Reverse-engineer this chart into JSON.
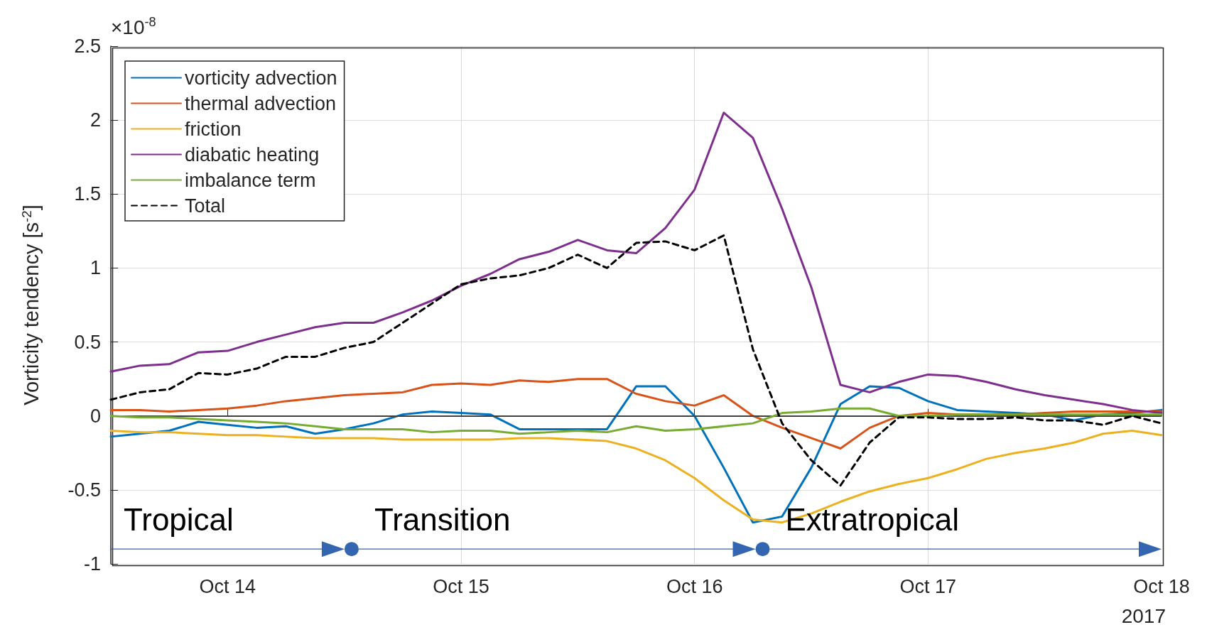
{
  "chart_data": {
    "type": "line",
    "ylabel": "Vorticity tendency [s$^{-2}$]",
    "annotations": [
      "×10$^{-8}$",
      "2017",
      "Tropical",
      {
        "text": "Transition",
        "x": "2017-10-14T12:45",
        "y": -0.9
      },
      {
        "text": "Extratropical",
        "x": "2017-10-16T07:00",
        "y": -0.9
      }
    ],
    "x": [
      "2017-10-13T12:00",
      "2017-10-13T15:00",
      "2017-10-13T18:00",
      "2017-10-13T21:00",
      "2017-10-14T00:00",
      "2017-10-14T03:00",
      "2017-10-14T06:00",
      "2017-10-14T09:00",
      "2017-10-14T12:00",
      "2017-10-14T15:00",
      "2017-10-14T18:00",
      "2017-10-14T21:00",
      "2017-10-15T00:00",
      "2017-10-15T03:00",
      "2017-10-15T06:00",
      "2017-10-15T09:00",
      "2017-10-15T12:00",
      "2017-10-15T15:00",
      "2017-10-15T18:00",
      "2017-10-15T21:00",
      "2017-10-16T00:00",
      "2017-10-16T03:00",
      "2017-10-16T06:00",
      "2017-10-16T09:00",
      "2017-10-16T12:00",
      "2017-10-16T15:00",
      "2017-10-16T18:00",
      "2017-10-16T21:00",
      "2017-10-17T00:00",
      "2017-10-17T03:00",
      "2017-10-17T06:00",
      "2017-10-17T09:00",
      "2017-10-17T12:00",
      "2017-10-17T15:00",
      "2017-10-17T18:00",
      "2017-10-17T21:00",
      "2017-10-18T00:00"
    ],
    "series": [
      {
        "name": "vorticity advection",
        "color": "#0072bd",
        "values": [
          -0.14,
          -0.12,
          -0.1,
          -0.04,
          -0.06,
          -0.08,
          -0.07,
          -0.12,
          -0.09,
          -0.05,
          0.01,
          0.03,
          0.02,
          0.01,
          -0.09,
          -0.09,
          -0.09,
          -0.09,
          0.2,
          0.2,
          0.0,
          -0.35,
          -0.72,
          -0.68,
          -0.35,
          0.08,
          0.2,
          0.19,
          0.1,
          0.04,
          0.03,
          0.02,
          0.01,
          -0.03,
          0.01,
          0.02,
          0.04
        ]
      },
      {
        "name": "thermal advection",
        "color": "#d95319",
        "values": [
          0.04,
          0.04,
          0.03,
          0.04,
          0.05,
          0.07,
          0.1,
          0.12,
          0.14,
          0.15,
          0.16,
          0.21,
          0.22,
          0.21,
          0.24,
          0.23,
          0.25,
          0.25,
          0.15,
          0.1,
          0.07,
          0.14,
          0.0,
          -0.08,
          -0.15,
          -0.22,
          -0.08,
          0.0,
          0.02,
          0.01,
          0.01,
          0.01,
          0.02,
          0.03,
          0.03,
          0.03,
          0.03
        ]
      },
      {
        "name": "friction",
        "color": "#edb120",
        "values": [
          -0.1,
          -0.11,
          -0.11,
          -0.12,
          -0.13,
          -0.13,
          -0.14,
          -0.15,
          -0.15,
          -0.15,
          -0.16,
          -0.16,
          -0.16,
          -0.16,
          -0.15,
          -0.15,
          -0.16,
          -0.17,
          -0.22,
          -0.3,
          -0.42,
          -0.57,
          -0.7,
          -0.72,
          -0.66,
          -0.58,
          -0.51,
          -0.46,
          -0.42,
          -0.36,
          -0.29,
          -0.25,
          -0.22,
          -0.18,
          -0.12,
          -0.1,
          -0.13
        ]
      },
      {
        "name": "diabatic heating",
        "color": "#7e2f8e",
        "values": [
          0.3,
          0.34,
          0.35,
          0.43,
          0.44,
          0.5,
          0.55,
          0.6,
          0.63,
          0.63,
          0.7,
          0.78,
          0.88,
          0.96,
          1.06,
          1.11,
          1.19,
          1.12,
          1.1,
          1.27,
          1.53,
          2.05,
          1.88,
          1.4,
          0.87,
          0.21,
          0.16,
          0.23,
          0.28,
          0.27,
          0.23,
          0.18,
          0.14,
          0.11,
          0.08,
          0.04,
          0.02
        ]
      },
      {
        "name": "imbalance term",
        "color": "#77ac30",
        "values": [
          0.0,
          -0.01,
          -0.01,
          -0.02,
          -0.03,
          -0.04,
          -0.05,
          -0.07,
          -0.09,
          -0.09,
          -0.09,
          -0.11,
          -0.1,
          -0.1,
          -0.12,
          -0.11,
          -0.1,
          -0.11,
          -0.07,
          -0.1,
          -0.09,
          -0.07,
          -0.05,
          0.02,
          0.03,
          0.05,
          0.05,
          0.0,
          0.0,
          0.01,
          0.01,
          0.01,
          0.01,
          0.01,
          0.01,
          0.01,
          0.01
        ]
      },
      {
        "name": "Total",
        "color": "#000000",
        "line_style": "dashed",
        "values": [
          0.11,
          0.16,
          0.18,
          0.29,
          0.28,
          0.32,
          0.4,
          0.4,
          0.46,
          0.5,
          0.63,
          0.76,
          0.89,
          0.93,
          0.95,
          1.0,
          1.09,
          1.0,
          1.17,
          1.18,
          1.12,
          1.22,
          0.45,
          -0.05,
          -0.3,
          -0.47,
          -0.18,
          -0.01,
          -0.01,
          -0.02,
          -0.02,
          -0.01,
          -0.03,
          -0.03,
          -0.06,
          0.0,
          -0.05
        ]
      }
    ],
    "xlim": [
      "2017-10-13T12:00",
      "2017-10-18T00:00"
    ],
    "xticks": [
      {
        "value": "2017-10-14",
        "label": "Oct 14"
      },
      {
        "value": "2017-10-15",
        "label": "Oct 15"
      },
      {
        "value": "2017-10-16",
        "label": "Oct 16"
      },
      {
        "value": "2017-10-17",
        "label": "Oct 17"
      },
      {
        "value": "2017-10-18",
        "label": "Oct 18"
      }
    ],
    "ylim": [
      -1,
      2.5
    ],
    "yticks": [
      -1,
      -0.5,
      0,
      0.5,
      1,
      1.5,
      2,
      2.5
    ],
    "ref_lines": [
      {
        "axis": "y",
        "value": 0,
        "color": "#404040"
      }
    ],
    "grid": true,
    "legend": "top left",
    "marker": "none",
    "line_style": "solid"
  }
}
